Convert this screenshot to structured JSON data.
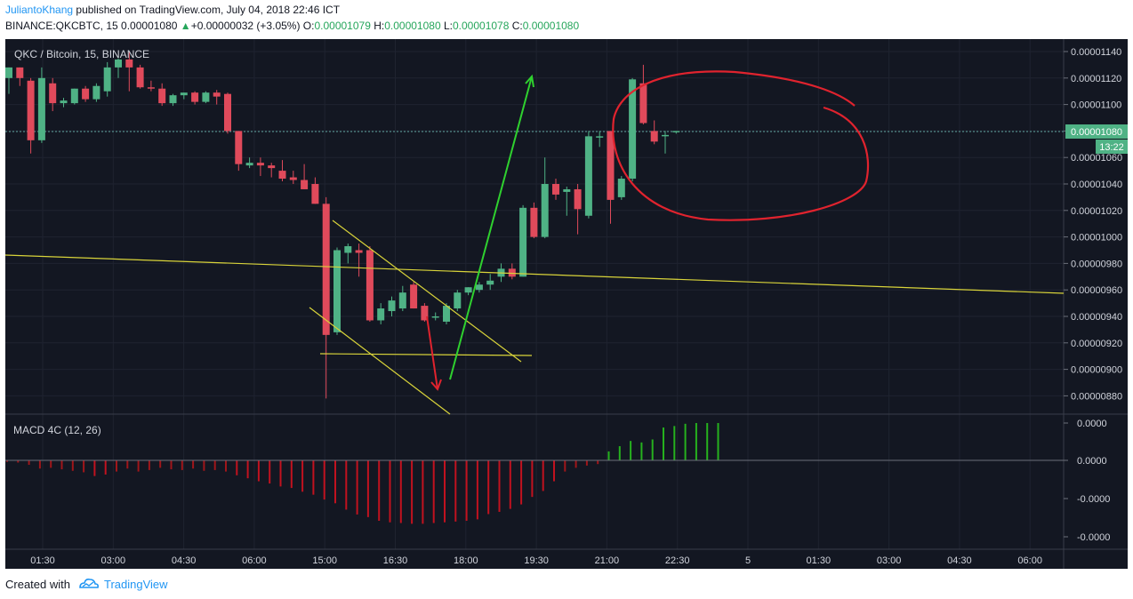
{
  "header": {
    "author": "JuliantoKhang",
    "published_text": "published on TradingView.com, July 04, 2018 22:46 ICT",
    "symbol": "BINANCE:QKCBTC, 15",
    "last_price": "0.00001080",
    "change": "+0.00000032 (+3.05%)",
    "open_label": "O:",
    "open": "0.00001079",
    "high_label": "H:",
    "high": "0.00001080",
    "low_label": "L:",
    "low": "0.00001078",
    "close_label": "C:",
    "close": "0.00001080"
  },
  "chart": {
    "pair_label": "QKC / Bitcoin, 15, BINANCE",
    "price_tag": "0.00001080",
    "countdown": "13:22",
    "macd_label": "MACD 4C (12, 26)"
  },
  "chart_data": {
    "type": "candlestick",
    "up_color": "#4fb285",
    "down_color": "#e04a5b",
    "price_axis_labels": [
      "0.00001140",
      "0.00001120",
      "0.00001100",
      "0.00001080",
      "0.00001060",
      "0.00001040",
      "0.00001020",
      "0.00001000",
      "0.00000980",
      "0.00000960",
      "0.00000940",
      "0.00000920",
      "0.00000900",
      "0.00000880"
    ],
    "price_range": [
      8.7e-06,
      1.148e-05
    ],
    "time_axis_labels": [
      "01:30",
      "03:00",
      "04:30",
      "06:00",
      "15:00",
      "16:30",
      "18:00",
      "19:30",
      "21:00",
      "22:30",
      "5",
      "01:30",
      "03:00",
      "04:30",
      "06:00"
    ],
    "candles": [
      {
        "o": 1.12,
        "h": 1.128,
        "l": 1.108,
        "c": 1.128
      },
      {
        "o": 1.128,
        "h": 1.128,
        "l": 1.114,
        "c": 1.12
      },
      {
        "o": 1.118,
        "h": 1.12,
        "l": 1.063,
        "c": 1.073
      },
      {
        "o": 1.073,
        "h": 1.128,
        "l": 1.071,
        "c": 1.12
      },
      {
        "o": 1.116,
        "h": 1.12,
        "l": 1.095,
        "c": 1.101
      },
      {
        "o": 1.101,
        "h": 1.105,
        "l": 1.098,
        "c": 1.103
      },
      {
        "o": 1.101,
        "h": 1.112,
        "l": 1.1,
        "c": 1.112
      },
      {
        "o": 1.112,
        "h": 1.114,
        "l": 1.102,
        "c": 1.104
      },
      {
        "o": 1.104,
        "h": 1.116,
        "l": 1.102,
        "c": 1.114
      },
      {
        "o": 1.11,
        "h": 1.132,
        "l": 1.106,
        "c": 1.128
      },
      {
        "o": 1.128,
        "h": 1.135,
        "l": 1.12,
        "c": 1.134
      },
      {
        "o": 1.134,
        "h": 1.14,
        "l": 1.11,
        "c": 1.128
      },
      {
        "o": 1.128,
        "h": 1.13,
        "l": 1.112,
        "c": 1.113
      },
      {
        "o": 1.113,
        "h": 1.118,
        "l": 1.11,
        "c": 1.112
      },
      {
        "o": 1.112,
        "h": 1.116,
        "l": 1.099,
        "c": 1.101
      },
      {
        "o": 1.101,
        "h": 1.108,
        "l": 1.099,
        "c": 1.107
      },
      {
        "o": 1.107,
        "h": 1.109,
        "l": 1.104,
        "c": 1.109
      },
      {
        "o": 1.109,
        "h": 1.11,
        "l": 1.1,
        "c": 1.102
      },
      {
        "o": 1.102,
        "h": 1.11,
        "l": 1.101,
        "c": 1.109
      },
      {
        "o": 1.109,
        "h": 1.111,
        "l": 1.1,
        "c": 1.106
      },
      {
        "o": 1.108,
        "h": 1.109,
        "l": 1.078,
        "c": 1.08
      },
      {
        "o": 1.08,
        "h": 1.08,
        "l": 1.05,
        "c": 1.055
      },
      {
        "o": 1.054,
        "h": 1.06,
        "l": 1.052,
        "c": 1.056
      },
      {
        "o": 1.056,
        "h": 1.06,
        "l": 1.046,
        "c": 1.054
      },
      {
        "o": 1.054,
        "h": 1.056,
        "l": 1.045,
        "c": 1.052
      },
      {
        "o": 1.05,
        "h": 1.058,
        "l": 1.042,
        "c": 1.044
      },
      {
        "o": 1.045,
        "h": 1.05,
        "l": 1.04,
        "c": 1.043
      },
      {
        "o": 1.043,
        "h": 1.055,
        "l": 1.036,
        "c": 1.036
      },
      {
        "o": 1.04,
        "h": 1.045,
        "l": 1.025,
        "c": 1.025
      },
      {
        "o": 1.025,
        "h": 1.03,
        "l": 0.878,
        "c": 0.926
      },
      {
        "o": 0.928,
        "h": 0.992,
        "l": 0.926,
        "c": 0.99
      },
      {
        "o": 0.988,
        "h": 0.995,
        "l": 0.98,
        "c": 0.993
      },
      {
        "o": 0.99,
        "h": 0.995,
        "l": 0.97,
        "c": 0.988
      },
      {
        "o": 0.99,
        "h": 0.993,
        "l": 0.936,
        "c": 0.937
      },
      {
        "o": 0.937,
        "h": 0.95,
        "l": 0.934,
        "c": 0.946
      },
      {
        "o": 0.944,
        "h": 0.955,
        "l": 0.94,
        "c": 0.952
      },
      {
        "o": 0.946,
        "h": 0.963,
        "l": 0.944,
        "c": 0.958
      },
      {
        "o": 0.964,
        "h": 0.966,
        "l": 0.946,
        "c": 0.946
      },
      {
        "o": 0.948,
        "h": 0.95,
        "l": 0.936,
        "c": 0.937
      },
      {
        "o": 0.94,
        "h": 0.943,
        "l": 0.937,
        "c": 0.94
      },
      {
        "o": 0.936,
        "h": 0.95,
        "l": 0.934,
        "c": 0.948
      },
      {
        "o": 0.946,
        "h": 0.96,
        "l": 0.944,
        "c": 0.958
      },
      {
        "o": 0.958,
        "h": 0.962,
        "l": 0.956,
        "c": 0.962
      },
      {
        "o": 0.96,
        "h": 0.966,
        "l": 0.958,
        "c": 0.964
      },
      {
        "o": 0.964,
        "h": 0.972,
        "l": 0.96,
        "c": 0.967
      },
      {
        "o": 0.97,
        "h": 0.98,
        "l": 0.966,
        "c": 0.976
      },
      {
        "o": 0.976,
        "h": 0.98,
        "l": 0.968,
        "c": 0.97
      },
      {
        "o": 0.97,
        "h": 1.024,
        "l": 0.97,
        "c": 1.022
      },
      {
        "o": 1.022,
        "h": 1.026,
        "l": 0.999,
        "c": 1.0
      },
      {
        "o": 1.0,
        "h": 1.06,
        "l": 0.999,
        "c": 1.04
      },
      {
        "o": 1.04,
        "h": 1.044,
        "l": 1.028,
        "c": 1.032
      },
      {
        "o": 1.034,
        "h": 1.038,
        "l": 1.016,
        "c": 1.036
      },
      {
        "o": 1.036,
        "h": 1.04,
        "l": 1.002,
        "c": 1.021
      },
      {
        "o": 1.016,
        "h": 1.08,
        "l": 1.014,
        "c": 1.076
      },
      {
        "o": 1.076,
        "h": 1.08,
        "l": 1.068,
        "c": 1.076
      },
      {
        "o": 1.08,
        "h": 1.08,
        "l": 1.01,
        "c": 1.028
      },
      {
        "o": 1.03,
        "h": 1.046,
        "l": 1.028,
        "c": 1.044
      },
      {
        "o": 1.044,
        "h": 1.12,
        "l": 1.042,
        "c": 1.119
      },
      {
        "o": 1.116,
        "h": 1.13,
        "l": 1.085,
        "c": 1.086
      },
      {
        "o": 1.08,
        "h": 1.088,
        "l": 1.07,
        "c": 1.072
      },
      {
        "o": 1.076,
        "h": 1.08,
        "l": 1.063,
        "c": 1.077
      },
      {
        "o": 1.079,
        "h": 1.08,
        "l": 1.078,
        "c": 1.08
      }
    ],
    "candle_units": "1e-5 BTC",
    "macd_axis_labels": [
      "0.0000",
      "0.0000",
      "-0.0000",
      "-0.0000"
    ],
    "macd_hist": [
      -0.04,
      -0.06,
      -0.12,
      -0.22,
      -0.2,
      -0.24,
      -0.28,
      -0.32,
      -0.42,
      -0.38,
      -0.3,
      -0.22,
      -0.3,
      -0.26,
      -0.2,
      -0.24,
      -0.26,
      -0.22,
      -0.28,
      -0.26,
      -0.3,
      -0.4,
      -0.48,
      -0.56,
      -0.62,
      -0.7,
      -0.74,
      -0.84,
      -0.92,
      -1.05,
      -1.15,
      -1.32,
      -1.45,
      -1.52,
      -1.62,
      -1.66,
      -1.68,
      -1.7,
      -1.7,
      -1.68,
      -1.66,
      -1.64,
      -1.62,
      -1.58,
      -1.44,
      -1.38,
      -1.3,
      -1.18,
      -0.98,
      -0.82,
      -0.56,
      -0.3,
      -0.2,
      -0.14,
      -0.1,
      0.24,
      0.38,
      0.52,
      0.48,
      0.56,
      0.88,
      0.92,
      0.98,
      1.0,
      1.0,
      1.0
    ]
  },
  "footer": {
    "created_with": "Created with",
    "brand": "TradingView"
  }
}
